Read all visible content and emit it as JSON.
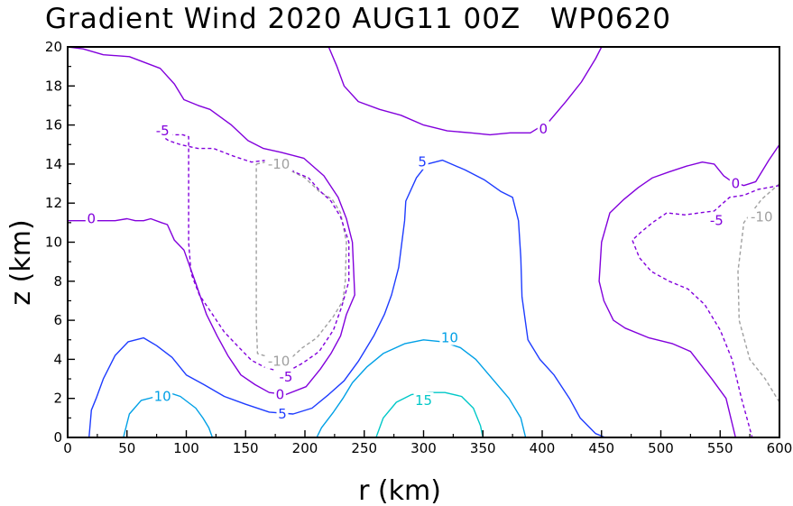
{
  "chart_data": {
    "type": "contour",
    "title": "Gradient Wind 2020 AUG11 00Z   WP0620",
    "xlabel": "r (km)",
    "ylabel": "z (km)",
    "xlim": [
      0,
      600
    ],
    "ylim": [
      0,
      20
    ],
    "xticks": [
      "0",
      "50",
      "100",
      "150",
      "200",
      "250",
      "300",
      "350",
      "400",
      "450",
      "500",
      "550",
      "600"
    ],
    "yticks": [
      "0",
      "2",
      "4",
      "6",
      "8",
      "10",
      "12",
      "14",
      "16",
      "18",
      "20"
    ],
    "grid": false,
    "colors": {
      "-10": "#a0a0a0",
      "-5": "#8200dc",
      "0": "#8200dc",
      "5": "#1e3cff",
      "10": "#00a0e6",
      "15": "#00c8c8"
    },
    "contours": [
      {
        "level": -10,
        "label": "-10",
        "style": "dashed",
        "points": [
          [
            159,
            14
          ],
          [
            167,
            14.1
          ],
          [
            179,
            14.05
          ],
          [
            190,
            13.6
          ],
          [
            200,
            13.3
          ],
          [
            212,
            12.6
          ],
          [
            223,
            12.2
          ],
          [
            230,
            11.5
          ],
          [
            235,
            10
          ],
          [
            234,
            8
          ],
          [
            232,
            7
          ],
          [
            224,
            6.2
          ],
          [
            210,
            5.1
          ],
          [
            198,
            4.6
          ],
          [
            189,
            4.1
          ],
          [
            176,
            4.1
          ],
          [
            165,
            4.2
          ],
          [
            160,
            4.3
          ],
          [
            159,
            6
          ],
          [
            159,
            10
          ],
          [
            159,
            14
          ]
        ]
      },
      {
        "level": -10,
        "label": "-10",
        "style": "dashed",
        "points": [
          [
            600,
            13
          ],
          [
            585,
            12.2
          ],
          [
            570,
            11
          ],
          [
            565,
            8.5
          ],
          [
            566,
            6
          ],
          [
            575,
            4
          ],
          [
            588,
            3
          ],
          [
            600,
            1.8
          ]
        ]
      },
      {
        "level": -5,
        "label": "-5",
        "style": "dashed",
        "points": [
          [
            78,
            15.5
          ],
          [
            85,
            15.2
          ],
          [
            95,
            15
          ],
          [
            110,
            14.8
          ],
          [
            123,
            14.8
          ],
          [
            140,
            14.4
          ],
          [
            155,
            14.1
          ],
          [
            168,
            14.2
          ],
          [
            180,
            14.1
          ],
          [
            191,
            13.6
          ],
          [
            203,
            13.3
          ],
          [
            213,
            12.6
          ],
          [
            222,
            12.1
          ],
          [
            230,
            11.3
          ],
          [
            237,
            10
          ],
          [
            237,
            8
          ],
          [
            231,
            6.7
          ],
          [
            224,
            5.5
          ],
          [
            212,
            4.4
          ],
          [
            198,
            3.8
          ],
          [
            183,
            3.3
          ],
          [
            166,
            3.6
          ],
          [
            155,
            3.95
          ],
          [
            143,
            4.7
          ],
          [
            132,
            5.4
          ],
          [
            121,
            6.4
          ],
          [
            111,
            7.3
          ],
          [
            104,
            8.4
          ],
          [
            102,
            10
          ],
          [
            102,
            15.4
          ],
          [
            97,
            15.5
          ],
          [
            78,
            15.5
          ]
        ]
      },
      {
        "level": -5,
        "label": "-5",
        "style": "dashed",
        "points": [
          [
            600,
            12.9
          ],
          [
            582,
            12.7
          ],
          [
            570,
            12.4
          ],
          [
            558,
            12.3
          ],
          [
            545,
            11.6
          ],
          [
            520,
            11.4
          ],
          [
            505,
            11.5
          ],
          [
            493,
            11
          ],
          [
            483,
            10.5
          ],
          [
            476,
            10.1
          ],
          [
            482,
            9.2
          ],
          [
            492,
            8.5
          ],
          [
            507,
            8
          ],
          [
            523,
            7.6
          ],
          [
            537,
            6.8
          ],
          [
            550,
            5.5
          ],
          [
            560,
            4
          ],
          [
            568,
            2
          ],
          [
            577,
            0
          ]
        ]
      },
      {
        "level": 0,
        "label": "0",
        "style": "solid",
        "points": [
          [
            0,
            20
          ],
          [
            13,
            19.9
          ],
          [
            30,
            19.6
          ],
          [
            52,
            19.5
          ],
          [
            78,
            18.9
          ],
          [
            90,
            18.1
          ],
          [
            98,
            17.3
          ],
          [
            110,
            17
          ],
          [
            120,
            16.8
          ],
          [
            138,
            16
          ],
          [
            152,
            15.2
          ],
          [
            165,
            14.8
          ],
          [
            180,
            14.6
          ],
          [
            199,
            14.3
          ],
          [
            216,
            13.4
          ],
          [
            228,
            12.3
          ],
          [
            235,
            11.2
          ],
          [
            240,
            10
          ],
          [
            242,
            7.3
          ],
          [
            235,
            6.3
          ],
          [
            230,
            5.2
          ],
          [
            222,
            4.3
          ],
          [
            213,
            3.5
          ],
          [
            201,
            2.6
          ],
          [
            184,
            2.2
          ],
          [
            170,
            2.3
          ],
          [
            158,
            2.7
          ],
          [
            146,
            3.2
          ],
          [
            135,
            4.2
          ],
          [
            126,
            5.2
          ],
          [
            117,
            6.3
          ],
          [
            108,
            7.9
          ],
          [
            98,
            9.6
          ],
          [
            90,
            10.1
          ],
          [
            84,
            10.9
          ],
          [
            79,
            11
          ],
          [
            70,
            11.2
          ],
          [
            64,
            11.1
          ],
          [
            57,
            11.1
          ],
          [
            50,
            11.2
          ],
          [
            40,
            11.1
          ],
          [
            25,
            11.1
          ],
          [
            0,
            11.1
          ]
        ]
      },
      {
        "level": 0,
        "label": "0",
        "style": "solid",
        "points": [
          [
            220,
            20
          ],
          [
            227,
            19
          ],
          [
            233,
            18
          ],
          [
            245,
            17.2
          ],
          [
            263,
            16.8
          ],
          [
            281,
            16.5
          ],
          [
            300,
            16
          ],
          [
            320,
            15.7
          ],
          [
            340,
            15.6
          ],
          [
            356,
            15.5
          ],
          [
            373,
            15.6
          ],
          [
            390,
            15.6
          ],
          [
            406,
            16.2
          ],
          [
            420,
            17.2
          ],
          [
            433,
            18.2
          ],
          [
            445,
            19.4
          ],
          [
            450,
            20
          ]
        ]
      },
      {
        "level": 0,
        "label": "0",
        "style": "solid",
        "points": [
          [
            600,
            15
          ],
          [
            591,
            14.2
          ],
          [
            580,
            13.1
          ],
          [
            570,
            12.9
          ],
          [
            560,
            13.1
          ],
          [
            553,
            13.4
          ],
          [
            545,
            14
          ],
          [
            535,
            14.1
          ],
          [
            522,
            13.9
          ],
          [
            507,
            13.6
          ],
          [
            493,
            13.3
          ],
          [
            481,
            12.8
          ],
          [
            469,
            12.2
          ],
          [
            457,
            11.5
          ],
          [
            450,
            10
          ],
          [
            448,
            8
          ],
          [
            452,
            7
          ],
          [
            460,
            6
          ],
          [
            470,
            5.6
          ],
          [
            490,
            5.1
          ],
          [
            510,
            4.8
          ],
          [
            525,
            4.4
          ],
          [
            543,
            3
          ],
          [
            555,
            2
          ],
          [
            563,
            0
          ]
        ]
      },
      {
        "level": 5,
        "label": "5",
        "style": "solid",
        "points": [
          [
            18,
            0
          ],
          [
            20,
            1.4
          ],
          [
            24,
            2
          ],
          [
            30,
            3
          ],
          [
            40,
            4.2
          ],
          [
            51,
            4.9
          ],
          [
            64,
            5.1
          ],
          [
            75,
            4.7
          ],
          [
            88,
            4.1
          ],
          [
            100,
            3.2
          ],
          [
            115,
            2.7
          ],
          [
            132,
            2.1
          ],
          [
            150,
            1.7
          ],
          [
            170,
            1.3
          ],
          [
            190,
            1.2
          ],
          [
            206,
            1.5
          ],
          [
            220,
            2.2
          ],
          [
            233,
            2.9
          ],
          [
            245,
            3.9
          ],
          [
            258,
            5.2
          ],
          [
            267,
            6.3
          ],
          [
            273,
            7.3
          ],
          [
            279,
            8.7
          ],
          [
            284,
            11.1
          ],
          [
            285,
            12.1
          ],
          [
            294,
            13.3
          ],
          [
            303,
            14
          ],
          [
            316,
            14.2
          ],
          [
            335,
            13.7
          ],
          [
            351,
            13.2
          ],
          [
            365,
            12.6
          ],
          [
            375,
            12.3
          ],
          [
            380,
            11.1
          ],
          [
            382,
            9.2
          ],
          [
            383,
            7.2
          ],
          [
            388,
            5
          ],
          [
            398,
            4
          ],
          [
            410,
            3.2
          ],
          [
            423,
            2
          ],
          [
            432,
            1
          ],
          [
            445,
            0.2
          ],
          [
            453,
            0
          ]
        ]
      },
      {
        "level": 10,
        "label": "10",
        "style": "solid",
        "points": [
          [
            47,
            0
          ],
          [
            52,
            1.2
          ],
          [
            62,
            1.9
          ],
          [
            75,
            2.1
          ],
          [
            85,
            2.3
          ],
          [
            95,
            2.1
          ],
          [
            108,
            1.5
          ],
          [
            114,
            1
          ],
          [
            119,
            0.5
          ],
          [
            122,
            0
          ]
        ]
      },
      {
        "level": 10,
        "label": "10",
        "style": "solid",
        "points": [
          [
            210,
            0
          ],
          [
            214,
            0.5
          ],
          [
            224,
            1.3
          ],
          [
            232,
            2
          ],
          [
            240,
            2.8
          ],
          [
            252,
            3.6
          ],
          [
            266,
            4.3
          ],
          [
            284,
            4.8
          ],
          [
            300,
            5
          ],
          [
            316,
            4.9
          ],
          [
            331,
            4.6
          ],
          [
            344,
            4
          ],
          [
            358,
            3
          ],
          [
            372,
            2
          ],
          [
            382,
            1
          ],
          [
            386,
            0
          ]
        ]
      },
      {
        "level": 15,
        "label": "15",
        "style": "solid",
        "points": [
          [
            260,
            0
          ],
          [
            266,
            1
          ],
          [
            277,
            1.8
          ],
          [
            290,
            2.2
          ],
          [
            305,
            2.3
          ],
          [
            318,
            2.3
          ],
          [
            332,
            2.1
          ],
          [
            342,
            1.5
          ],
          [
            348,
            0.6
          ],
          [
            350,
            0
          ]
        ]
      }
    ],
    "contour_labels": [
      {
        "level": -10,
        "text": "-10",
        "x": 178,
        "y": 14
      },
      {
        "level": -10,
        "text": "-10",
        "x": 178,
        "y": 3.9
      },
      {
        "level": -10,
        "text": "-10",
        "x": 585,
        "y": 11.3
      },
      {
        "level": -5,
        "text": "-5",
        "x": 80,
        "y": 15.7
      },
      {
        "level": -5,
        "text": "-5",
        "x": 184,
        "y": 3.1
      },
      {
        "level": -5,
        "text": "-5",
        "x": 547,
        "y": 11.1
      },
      {
        "level": 0,
        "text": "0",
        "x": 20,
        "y": 11.2
      },
      {
        "level": 0,
        "text": "0",
        "x": 179,
        "y": 2.2
      },
      {
        "level": 0,
        "text": "0",
        "x": 401,
        "y": 15.8
      },
      {
        "level": 0,
        "text": "0",
        "x": 563,
        "y": 13
      },
      {
        "level": 5,
        "text": "5",
        "x": 181,
        "y": 1.2
      },
      {
        "level": 5,
        "text": "5",
        "x": 299,
        "y": 14.1
      },
      {
        "level": 10,
        "text": "10",
        "x": 80,
        "y": 2.1
      },
      {
        "level": 10,
        "text": "10",
        "x": 322,
        "y": 5.1
      },
      {
        "level": 15,
        "text": "15",
        "x": 300,
        "y": 1.9
      }
    ]
  }
}
